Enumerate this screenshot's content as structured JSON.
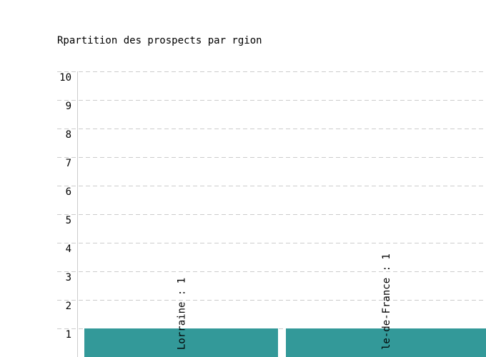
{
  "chart_data": {
    "type": "bar",
    "title": "Rpartition des prospects par rgion",
    "categories": [
      "Lorraine",
      "le-de-France"
    ],
    "values": [
      1,
      1
    ],
    "data_labels": [
      "Lorraine : 1",
      "le-de-France : 1"
    ],
    "xlabel": "",
    "ylabel": "",
    "ylim": [
      0,
      10
    ],
    "yticks": [
      1,
      2,
      3,
      4,
      5,
      6,
      7,
      8,
      9,
      10
    ],
    "grid": true,
    "bar_color": "#339999",
    "grid_color": "#cccccc"
  }
}
